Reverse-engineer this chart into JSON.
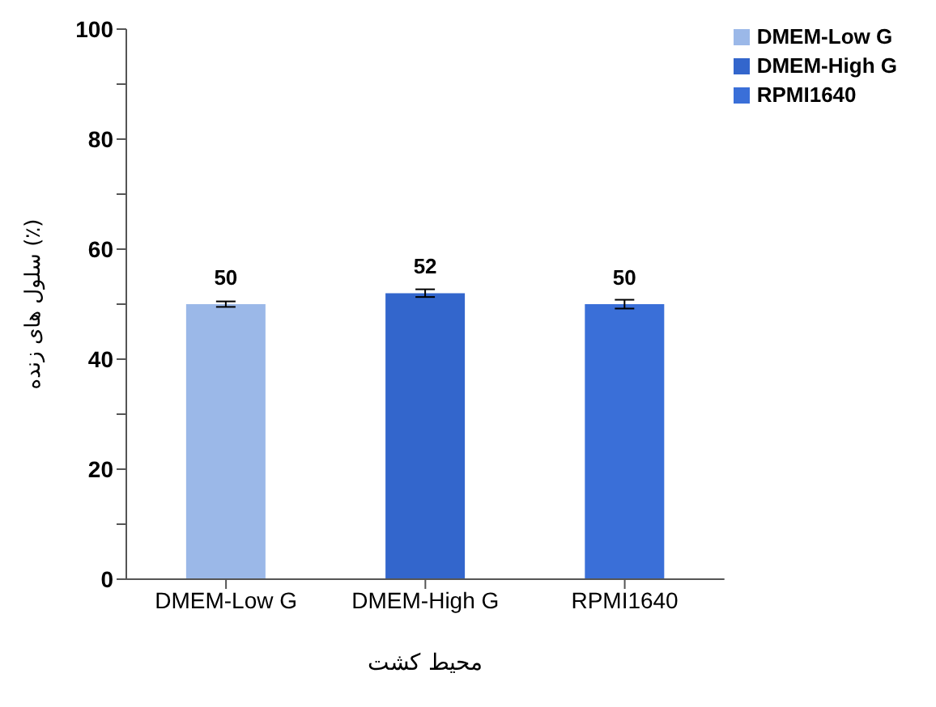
{
  "chart_data": {
    "type": "bar",
    "xlabel": "محیط کشت",
    "ylabel": "سلول های زنده (٪)",
    "categories": [
      "DMEM-Low G",
      "DMEM-High G",
      "RPMI1640"
    ],
    "series": [
      {
        "name": "DMEM-Low G",
        "color": "#9bb8e8",
        "values": [
          50,
          null,
          null
        ],
        "errors": [
          0.5,
          null,
          null
        ]
      },
      {
        "name": "DMEM-High G",
        "color": "#3366cc",
        "values": [
          null,
          52,
          null
        ],
        "errors": [
          null,
          0.7,
          null
        ]
      },
      {
        "name": "RPMI1640",
        "color": "#3a6fd8",
        "values": [
          null,
          null,
          50
        ],
        "errors": [
          null,
          null,
          0.8
        ]
      }
    ],
    "stacked": true,
    "ylim": [
      0,
      100
    ],
    "yticks": [
      0,
      {
        "value": 10,
        "label": null
      },
      20,
      {
        "value": 30,
        "label": null
      },
      40,
      {
        "value": 50,
        "label": null
      },
      60,
      {
        "value": 70,
        "label": null
      },
      80,
      {
        "value": 90,
        "label": null
      },
      100
    ],
    "data_labels": true,
    "grid": false,
    "legend": "top right"
  }
}
